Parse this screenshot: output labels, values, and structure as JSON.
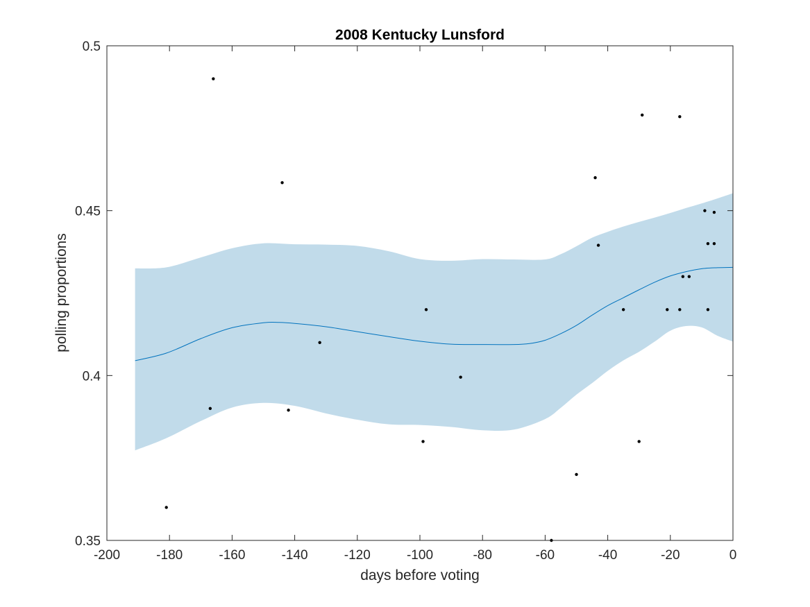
{
  "chart_data": {
    "type": "scatter",
    "title": "2008 Kentucky Lunsford",
    "xlabel": "days before voting",
    "ylabel": "polling proportions",
    "xlim": [
      -200,
      0
    ],
    "ylim": [
      0.35,
      0.5
    ],
    "xticks": [
      -200,
      -180,
      -160,
      -140,
      -120,
      -100,
      -80,
      -60,
      -40,
      -20,
      0
    ],
    "xtick_labels": [
      "-200",
      "-180",
      "-160",
      "-140",
      "-120",
      "-100",
      "-80",
      "-60",
      "-40",
      "-20",
      "0"
    ],
    "yticks": [
      0.35,
      0.4,
      0.45,
      0.5
    ],
    "ytick_labels": [
      "0.35",
      "0.4",
      "0.45",
      "0.5"
    ],
    "grid": false,
    "colors": {
      "trend_line": "#0072BD",
      "confidence_band": "#c1dbea",
      "points": "#000000",
      "axes": "#262626"
    },
    "series": [
      {
        "type": "scatter",
        "x": [
          -181,
          -167,
          -166,
          -144,
          -142,
          -132,
          -99,
          -98,
          -87,
          -58,
          -50,
          -44,
          -43,
          -35,
          -30,
          -29,
          -21,
          -17,
          -17,
          -16,
          -14,
          -9,
          -8,
          -8,
          -6,
          -6
        ],
        "y": [
          0.36,
          0.39,
          0.49,
          0.4585,
          0.3895,
          0.41,
          0.38,
          0.42,
          0.3995,
          0.35,
          0.37,
          0.46,
          0.4395,
          0.42,
          0.38,
          0.479,
          0.42,
          0.42,
          0.4785,
          0.43,
          0.43,
          0.45,
          0.44,
          0.42,
          0.4495,
          0.44
        ]
      },
      {
        "type": "line",
        "x": [
          -191,
          -181,
          -170,
          -160,
          -150,
          -145,
          -140,
          -130,
          -120,
          -110,
          -100,
          -90,
          -80,
          -70,
          -65,
          -60,
          -55,
          -50,
          -45,
          -40,
          -35,
          -30,
          -25,
          -20,
          -15,
          -10,
          -5,
          0
        ],
        "y": [
          0.4045,
          0.4068,
          0.4112,
          0.4145,
          0.416,
          0.4161,
          0.4158,
          0.4148,
          0.4133,
          0.4118,
          0.4104,
          0.4095,
          0.4094,
          0.4094,
          0.4097,
          0.4107,
          0.4127,
          0.4152,
          0.4183,
          0.4212,
          0.4236,
          0.426,
          0.4283,
          0.4302,
          0.4315,
          0.4324,
          0.4327,
          0.4328
        ]
      },
      {
        "type": "band",
        "x": [
          -191,
          -181,
          -170,
          -160,
          -150,
          -140,
          -130,
          -120,
          -110,
          -100,
          -90,
          -80,
          -70,
          -60,
          -55,
          -50,
          -45,
          -40,
          -35,
          -30,
          -25,
          -20,
          -15,
          -10,
          -5,
          0
        ],
        "upper": [
          0.4325,
          0.4328,
          0.4358,
          0.4386,
          0.4401,
          0.4398,
          0.4397,
          0.4393,
          0.4377,
          0.4353,
          0.4348,
          0.4353,
          0.4352,
          0.4352,
          0.4368,
          0.4392,
          0.4418,
          0.4436,
          0.4452,
          0.4466,
          0.4479,
          0.4493,
          0.4508,
          0.4522,
          0.4537,
          0.4553
        ],
        "lower": [
          0.3773,
          0.381,
          0.3862,
          0.3903,
          0.3917,
          0.3908,
          0.3885,
          0.3866,
          0.3852,
          0.385,
          0.3844,
          0.3834,
          0.3836,
          0.3868,
          0.3902,
          0.3942,
          0.3977,
          0.4014,
          0.4046,
          0.4072,
          0.4103,
          0.4136,
          0.415,
          0.4146,
          0.4121,
          0.4103
        ]
      }
    ]
  }
}
